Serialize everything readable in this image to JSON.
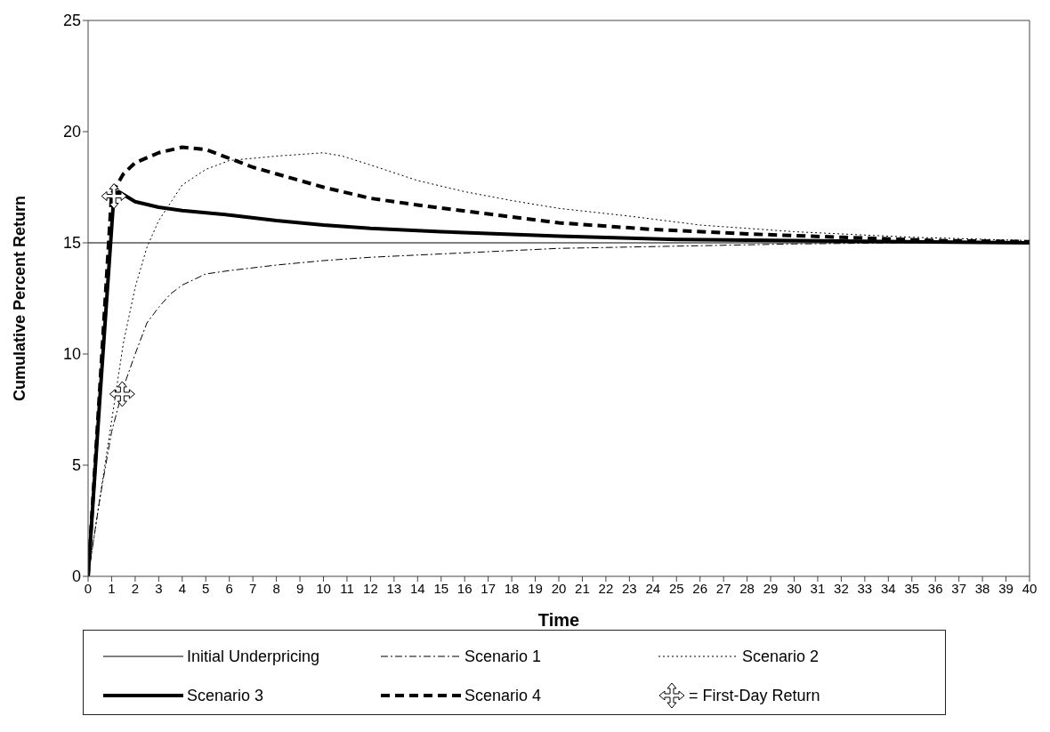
{
  "chart_data": {
    "type": "line",
    "xlabel": "Time",
    "ylabel": "Cumulative Percent Return",
    "xlim": [
      0,
      40
    ],
    "xticks": [
      0,
      1,
      2,
      3,
      4,
      5,
      6,
      7,
      8,
      9,
      10,
      11,
      12,
      13,
      14,
      15,
      16,
      17,
      18,
      19,
      20,
      21,
      22,
      23,
      24,
      25,
      26,
      27,
      28,
      29,
      30,
      31,
      32,
      33,
      34,
      35,
      36,
      37,
      38,
      39,
      40
    ],
    "ylim": [
      0,
      25
    ],
    "yticks": [
      0,
      5,
      10,
      15,
      20,
      25
    ],
    "grid": false,
    "legend": "bottom",
    "series": [
      {
        "name": "Initial Underpricing",
        "color": "#000000",
        "line_style": "solid",
        "x": [
          0,
          40
        ],
        "values": [
          15,
          15
        ]
      },
      {
        "name": "Scenario 1",
        "color": "#000000",
        "line_style": "dashdot",
        "x": [
          0,
          0.5,
          1,
          1.5,
          2,
          2.5,
          3,
          3.5,
          4,
          5,
          6,
          8,
          10,
          12,
          15,
          20,
          25,
          30,
          35,
          40
        ],
        "values": [
          0,
          3.5,
          6.5,
          8.5,
          10,
          11.4,
          12.1,
          12.7,
          13.1,
          13.6,
          13.75,
          14.0,
          14.2,
          14.35,
          14.5,
          14.75,
          14.85,
          14.95,
          15,
          15
        ]
      },
      {
        "name": "Scenario 2",
        "color": "#000000",
        "line_style": "dotted",
        "x": [
          0,
          0.5,
          1,
          1.5,
          2,
          2.5,
          3,
          4,
          5,
          6,
          8,
          10,
          10.8,
          12,
          14,
          16,
          18,
          20,
          23,
          26,
          30,
          35,
          40
        ],
        "values": [
          0,
          3.5,
          7,
          10.5,
          13,
          14.8,
          16,
          17.6,
          18.3,
          18.7,
          18.9,
          19.05,
          18.9,
          18.5,
          17.8,
          17.3,
          16.9,
          16.55,
          16.2,
          15.8,
          15.5,
          15.25,
          15.1
        ]
      },
      {
        "name": "Scenario 3",
        "color": "#000000",
        "line_style": "solid",
        "x": [
          0,
          0.5,
          1.1,
          1.3,
          2,
          3,
          4,
          6,
          8,
          10,
          12,
          15,
          20,
          25,
          30,
          40
        ],
        "values": [
          0,
          8,
          17.2,
          17.3,
          16.85,
          16.6,
          16.45,
          16.25,
          16.0,
          15.8,
          15.65,
          15.5,
          15.3,
          15.15,
          15.1,
          15.0
        ]
      },
      {
        "name": "Scenario 4",
        "color": "#000000",
        "line_style": "dashed",
        "x": [
          0,
          0.5,
          1,
          1.5,
          2,
          3,
          4,
          5,
          6,
          7,
          8,
          10,
          12,
          14,
          17,
          20,
          24,
          28,
          32,
          36,
          40
        ],
        "values": [
          0,
          8.5,
          17.2,
          18.1,
          18.6,
          19.05,
          19.3,
          19.2,
          18.8,
          18.4,
          18.1,
          17.5,
          17.0,
          16.7,
          16.3,
          15.9,
          15.6,
          15.4,
          15.25,
          15.1,
          15.05
        ]
      },
      {
        "name": "= First-Day Return",
        "type": "scatter",
        "color": "#000000",
        "marker": "cross",
        "x": [
          1.1,
          1.45
        ],
        "values": [
          17.1,
          8.2
        ]
      }
    ]
  }
}
